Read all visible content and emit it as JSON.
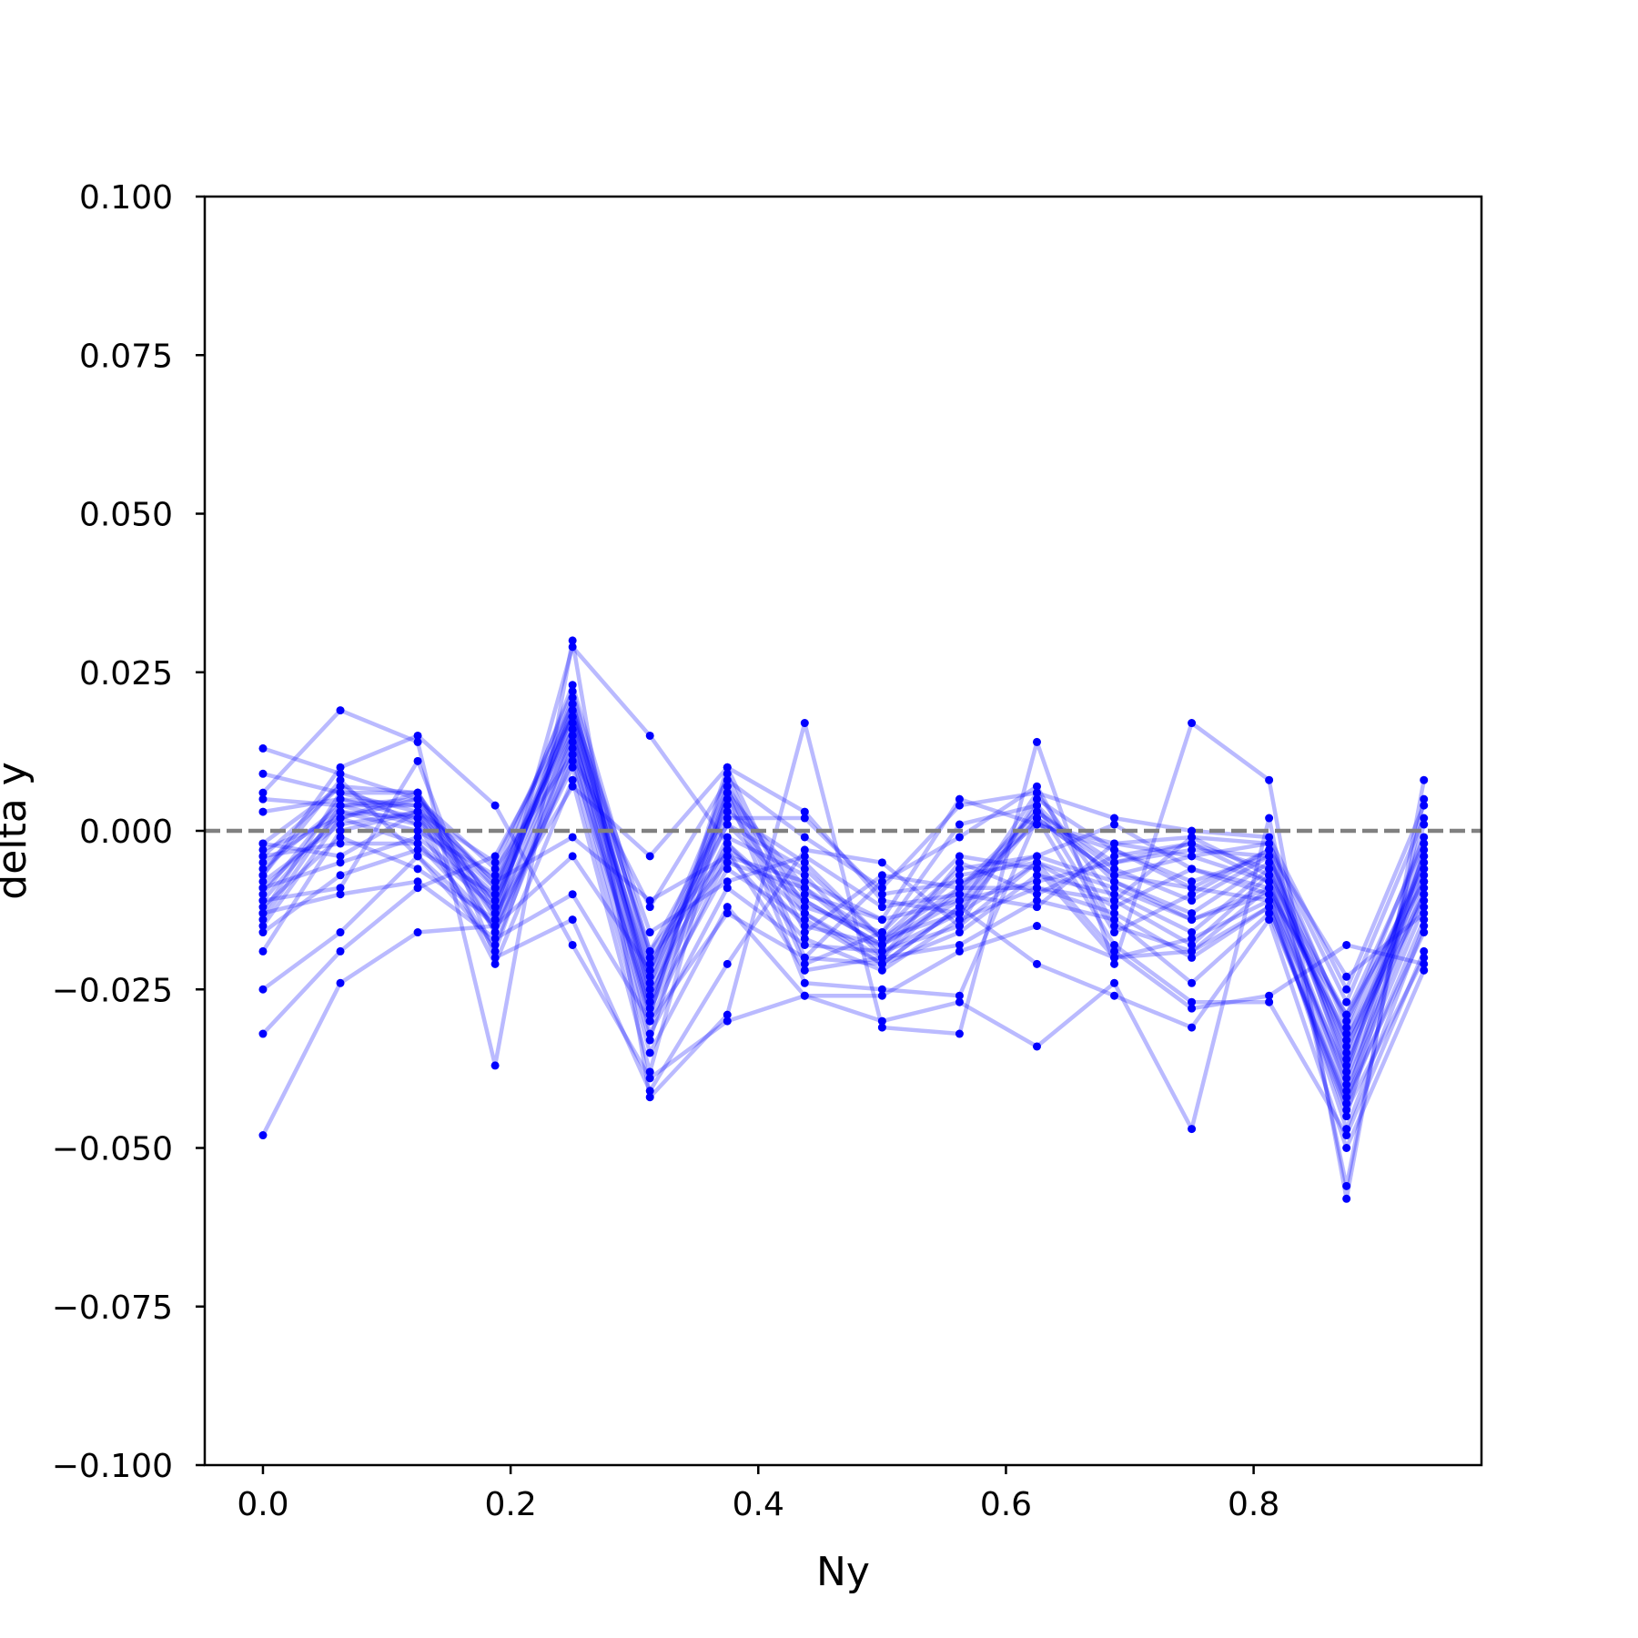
{
  "chart_data": {
    "type": "line",
    "title": "",
    "xlabel": "Ny",
    "ylabel": "delta y",
    "xlim": [
      -0.047,
      0.984
    ],
    "ylim": [
      -0.1,
      0.1
    ],
    "x": [
      0.0,
      0.0625,
      0.125,
      0.1875,
      0.25,
      0.3125,
      0.375,
      0.4375,
      0.5,
      0.5625,
      0.625,
      0.6875,
      0.75,
      0.8125,
      0.875,
      0.9375
    ],
    "xticks": [
      0.0,
      0.2,
      0.4,
      0.6,
      0.8
    ],
    "xtick_labels": [
      "0.0",
      "0.2",
      "0.4",
      "0.6",
      "0.8"
    ],
    "yticks": [
      0.1,
      0.075,
      0.05,
      0.025,
      0.0,
      -0.025,
      -0.05,
      -0.075,
      -0.1
    ],
    "ytick_labels": [
      "0.100",
      "0.075",
      "0.050",
      "0.025",
      "0.000",
      "−0.025",
      "−0.050",
      "−0.075",
      "−0.100"
    ],
    "reference_line": {
      "y": 0.0,
      "style": "dashed",
      "color": "#808080"
    },
    "line_color": "#0000ff",
    "line_opacity": 0.27,
    "marker_color": "#0000ff",
    "grid": false,
    "series": [
      {
        "values": [
          0.013,
          0.009,
          0.005,
          -0.009,
          0.018,
          -0.019,
          -0.003,
          -0.011,
          -0.018,
          -0.011,
          -0.008,
          -0.005,
          -0.003,
          -0.004,
          -0.03,
          -0.006
        ]
      },
      {
        "values": [
          0.009,
          0.006,
          0.003,
          -0.011,
          0.015,
          -0.024,
          0.004,
          -0.013,
          -0.02,
          -0.009,
          0.003,
          -0.005,
          -0.002,
          -0.006,
          -0.035,
          -0.004
        ]
      },
      {
        "values": [
          0.005,
          0.004,
          0.004,
          -0.008,
          0.016,
          -0.022,
          0.001,
          -0.006,
          -0.017,
          -0.013,
          0.002,
          -0.007,
          -0.004,
          -0.008,
          -0.033,
          -0.01
        ]
      },
      {
        "values": [
          0.003,
          0.005,
          0.002,
          -0.013,
          0.021,
          -0.027,
          0.006,
          -0.009,
          -0.019,
          -0.015,
          0.005,
          -0.003,
          -0.009,
          -0.003,
          -0.038,
          -0.002
        ]
      },
      {
        "values": [
          -0.002,
          0.007,
          0.001,
          -0.01,
          0.017,
          -0.025,
          -0.002,
          -0.015,
          -0.018,
          -0.007,
          -0.005,
          -0.009,
          -0.014,
          -0.01,
          -0.029,
          -0.008
        ]
      },
      {
        "values": [
          -0.003,
          0.002,
          0.006,
          -0.016,
          0.013,
          -0.029,
          0.009,
          -0.02,
          -0.021,
          -0.012,
          0.006,
          -0.011,
          -0.018,
          -0.007,
          -0.041,
          -0.012
        ]
      },
      {
        "values": [
          -0.004,
          -0.002,
          -0.002,
          -0.012,
          0.019,
          -0.016,
          -0.008,
          -0.004,
          -0.012,
          -0.01,
          -0.012,
          -0.002,
          -0.001,
          -0.002,
          -0.027,
          0.002
        ]
      },
      {
        "values": [
          -0.005,
          0.003,
          0.0,
          -0.007,
          0.022,
          -0.021,
          0.002,
          0.002,
          -0.01,
          -0.008,
          -0.004,
          0.001,
          -0.006,
          -0.009,
          -0.032,
          -0.005
        ]
      },
      {
        "values": [
          -0.006,
          0.004,
          0.005,
          -0.014,
          0.014,
          -0.03,
          -0.004,
          -0.017,
          -0.022,
          -0.014,
          -0.009,
          -0.013,
          -0.02,
          -0.012,
          -0.043,
          -0.014
        ]
      },
      {
        "values": [
          -0.007,
          0.008,
          -0.004,
          -0.018,
          0.012,
          -0.033,
          0.007,
          -0.012,
          -0.016,
          0.001,
          0.004,
          -0.008,
          -0.013,
          -0.005,
          -0.037,
          -0.007
        ]
      },
      {
        "values": [
          -0.008,
          0.001,
          0.003,
          -0.005,
          0.02,
          -0.026,
          -0.001,
          -0.007,
          -0.02,
          -0.005,
          -0.01,
          -0.004,
          -0.002,
          -0.008,
          -0.039,
          -0.009
        ]
      },
      {
        "values": [
          -0.009,
          -0.005,
          -0.001,
          -0.011,
          0.018,
          -0.023,
          0.005,
          -0.01,
          -0.014,
          -0.011,
          0.002,
          -0.007,
          -0.009,
          -0.011,
          -0.045,
          -0.003
        ]
      },
      {
        "values": [
          -0.01,
          0.005,
          0.004,
          -0.016,
          0.011,
          -0.028,
          -0.006,
          -0.014,
          -0.021,
          -0.016,
          -0.007,
          -0.01,
          -0.016,
          -0.006,
          -0.034,
          -0.011
        ]
      },
      {
        "values": [
          -0.011,
          0.003,
          0.002,
          -0.009,
          0.023,
          -0.019,
          0.003,
          -0.005,
          -0.017,
          -0.009,
          0.001,
          -0.002,
          -0.004,
          -0.002,
          -0.031,
          -0.001
        ]
      },
      {
        "values": [
          -0.012,
          -0.001,
          -0.006,
          -0.014,
          0.016,
          -0.032,
          -0.009,
          -0.018,
          -0.019,
          -0.013,
          -0.005,
          -0.012,
          -0.006,
          -0.01,
          -0.047,
          -0.015
        ]
      },
      {
        "values": [
          -0.013,
          0.006,
          0.006,
          -0.012,
          0.019,
          -0.024,
          0.001,
          -0.011,
          -0.018,
          -0.01,
          0.003,
          -0.006,
          -0.011,
          -0.004,
          -0.036,
          -0.006
        ]
      },
      {
        "values": [
          -0.014,
          0.004,
          0.001,
          -0.019,
          0.015,
          -0.027,
          -0.003,
          -0.022,
          -0.02,
          -0.018,
          -0.011,
          -0.014,
          -0.024,
          -0.013,
          -0.042,
          -0.016
        ]
      },
      {
        "values": [
          -0.015,
          0.002,
          0.005,
          -0.006,
          0.012,
          -0.012,
          0.008,
          -0.001,
          -0.009,
          0.004,
          0.006,
          0.002,
          0.0,
          -0.001,
          -0.025,
          0.004
        ]
      },
      {
        "values": [
          -0.016,
          -0.007,
          -0.003,
          -0.01,
          0.02,
          -0.02,
          -0.005,
          -0.009,
          -0.017,
          -0.006,
          -0.004,
          -0.008,
          -0.014,
          -0.009,
          -0.04,
          -0.01
        ]
      },
      {
        "values": [
          -0.019,
          0.0,
          0.003,
          -0.021,
          0.008,
          -0.038,
          0.006,
          -0.024,
          -0.025,
          -0.026,
          0.002,
          -0.018,
          -0.027,
          -0.027,
          -0.048,
          -0.019
        ]
      },
      {
        "values": [
          -0.025,
          -0.016,
          -0.004,
          -0.015,
          0.01,
          -0.035,
          -0.012,
          -0.026,
          -0.026,
          -0.019,
          -0.015,
          -0.02,
          -0.019,
          -0.012,
          -0.044,
          -0.02
        ]
      },
      {
        "values": [
          -0.032,
          -0.019,
          -0.009,
          -0.004,
          0.018,
          -0.029,
          0.01,
          0.003,
          -0.011,
          -0.013,
          0.004,
          -0.016,
          -0.01,
          -0.003,
          -0.023,
          -0.013
        ]
      },
      {
        "values": [
          -0.048,
          -0.024,
          -0.016,
          -0.015,
          0.029,
          0.015,
          -0.002,
          -0.013,
          -0.021,
          -0.012,
          -0.021,
          -0.026,
          -0.031,
          -0.014,
          -0.05,
          -0.022
        ]
      },
      {
        "values": [
          0.006,
          0.019,
          0.014,
          -0.037,
          0.03,
          -0.042,
          -0.029,
          0.017,
          -0.031,
          -0.032,
          0.014,
          -0.021,
          0.017,
          0.008,
          -0.058,
          0.008
        ]
      },
      {
        "values": [
          -0.007,
          0.01,
          0.015,
          0.004,
          -0.018,
          -0.039,
          -0.03,
          -0.026,
          -0.03,
          -0.027,
          -0.034,
          -0.024,
          -0.047,
          0.002,
          -0.056,
          0.005
        ]
      },
      {
        "values": [
          -0.011,
          -0.009,
          0.011,
          -0.02,
          -0.014,
          -0.041,
          -0.021,
          -0.003,
          -0.005,
          -0.015,
          -0.005,
          -0.019,
          -0.028,
          -0.026,
          -0.018,
          -0.021
        ]
      },
      {
        "values": [
          -0.013,
          -0.01,
          -0.008,
          -0.017,
          -0.01,
          -0.03,
          -0.013,
          -0.02,
          -0.008,
          -0.001,
          0.007,
          -0.015,
          -0.019,
          -0.009,
          -0.043,
          0.001
        ]
      },
      {
        "values": [
          -0.004,
          0.007,
          0.006,
          -0.013,
          0.007,
          -0.004,
          0.01,
          -0.016,
          -0.007,
          -0.009,
          -0.009,
          -0.011,
          -0.001,
          -0.007,
          -0.029,
          -0.002
        ]
      },
      {
        "values": [
          -0.002,
          -0.004,
          0.003,
          -0.008,
          -0.001,
          -0.011,
          -0.004,
          -0.008,
          -0.014,
          0.005,
          0.001,
          -0.003,
          -0.008,
          -0.004,
          -0.033,
          -0.008
        ]
      },
      {
        "values": [
          -0.009,
          0.002,
          -0.002,
          -0.015,
          -0.004,
          -0.022,
          0.007,
          -0.021,
          -0.016,
          -0.004,
          -0.006,
          -0.02,
          -0.017,
          -0.011,
          -0.038,
          -0.004
        ]
      }
    ]
  }
}
